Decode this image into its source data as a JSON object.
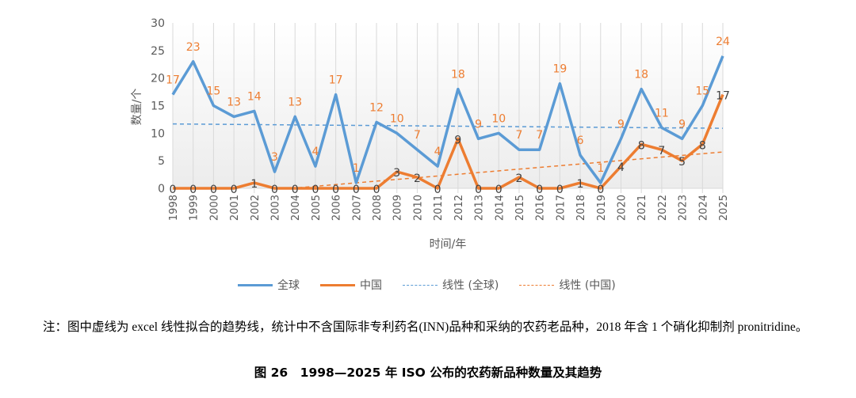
{
  "chart_data": {
    "type": "line",
    "title": "",
    "xlabel": "时间/年",
    "ylabel": "数量/个",
    "ylim": [
      0,
      30
    ],
    "yticks": [
      0,
      5,
      10,
      15,
      20,
      25,
      30
    ],
    "grid": "vertical",
    "legend_placement": "bottom",
    "x": [
      "1998",
      "1999",
      "2000",
      "2001",
      "2002",
      "2003",
      "2004",
      "2005",
      "2006",
      "2007",
      "2008",
      "2009",
      "2010",
      "2011",
      "2012",
      "2013",
      "2014",
      "2015",
      "2016",
      "2017",
      "2018",
      "2019",
      "2020",
      "2021",
      "2022",
      "2023",
      "2024",
      "2025"
    ],
    "series": [
      {
        "name": "全球",
        "color": "#5B9BD5",
        "label_color": "#ED7D31",
        "values": [
          17,
          23,
          15,
          13,
          14,
          3,
          13,
          4,
          17,
          1,
          12,
          10,
          7,
          4,
          18,
          9,
          10,
          7,
          7,
          19,
          6,
          1,
          9,
          18,
          11,
          9,
          15,
          24
        ]
      },
      {
        "name": "中国",
        "color": "#ED7D31",
        "label_color": "#404040",
        "values": [
          0,
          0,
          0,
          0,
          1,
          0,
          0,
          0,
          0,
          0,
          0,
          3,
          2,
          0,
          9,
          0,
          0,
          2,
          0,
          0,
          1,
          0,
          4,
          8,
          7,
          5,
          8,
          17
        ]
      }
    ],
    "trendlines": [
      {
        "name": "线性 (全球)",
        "of": "全球",
        "color": "#5B9BD5",
        "style": "dashed"
      },
      {
        "name": "线性 (中国)",
        "of": "中国",
        "color": "#ED7D31",
        "style": "dashed"
      }
    ]
  },
  "note": "注：图中虚线为 excel 线性拟合的趋势线，统计中不含国际非专利药名(INN)品种和采纳的农药老品种，2018 年含 1 个硝化抑制剂 pronitridine。",
  "caption": "图 26　1998—2025 年 ISO 公布的农药新品种数量及其趋势"
}
